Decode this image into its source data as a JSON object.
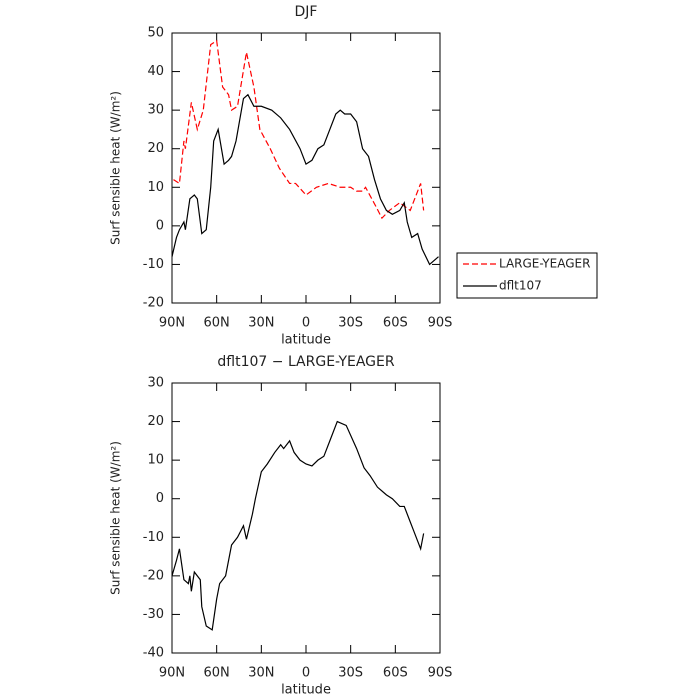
{
  "chart_data": [
    {
      "type": "line",
      "title": "DJF",
      "xlabel": "latitude",
      "ylabel": "Surf sensible heat (W/m²)",
      "xlim": [
        90,
        -90
      ],
      "xticks": [
        {
          "value": 90,
          "label": "90N"
        },
        {
          "value": 60,
          "label": "60N"
        },
        {
          "value": 30,
          "label": "30N"
        },
        0,
        {
          "value": -30,
          "label": "30S"
        },
        {
          "value": -60,
          "label": "60S"
        },
        {
          "value": -90,
          "label": "90S"
        }
      ],
      "ylim": [
        -20,
        50
      ],
      "yticks": [
        -20,
        -10,
        0,
        10,
        20,
        30,
        40,
        50
      ],
      "legend": "right",
      "series": [
        {
          "name": "LARGE-YEAGER",
          "color": "#ff0000",
          "linestyle": "dashed",
          "x": [
            89,
            85,
            82,
            81,
            77,
            73,
            69,
            64,
            60,
            56,
            52,
            50,
            46,
            40,
            35,
            31,
            24,
            18,
            11,
            7,
            0,
            -7,
            -15,
            -23,
            -30,
            -34,
            -38,
            -40,
            -47,
            -51,
            -56,
            -63,
            -70,
            -77,
            -79
          ],
          "values": [
            12,
            11,
            22,
            20,
            32,
            25,
            30,
            47,
            48,
            36,
            34,
            30,
            31,
            45,
            36,
            25,
            20,
            15,
            11,
            11,
            8,
            10,
            11,
            10,
            10,
            9,
            9,
            10,
            5,
            2,
            4,
            6,
            4,
            11,
            4
          ]
        },
        {
          "name": "dflt107",
          "color": "#000000",
          "linestyle": "solid",
          "x": [
            90,
            87,
            85,
            82,
            81,
            78,
            75,
            73,
            70,
            67,
            64,
            62,
            59,
            55,
            52,
            50,
            47,
            42,
            39,
            35,
            30,
            23,
            17,
            11,
            4,
            0,
            -4,
            -8,
            -12,
            -16,
            -20,
            -23,
            -26,
            -30,
            -34,
            -38,
            -42,
            -46,
            -50,
            -54,
            -58,
            -63,
            -66,
            -68,
            -71,
            -75,
            -78,
            -83,
            -86,
            -89
          ],
          "values": [
            -8,
            -3,
            -1,
            1,
            -1,
            7,
            8,
            7,
            -2,
            -1,
            10,
            22,
            25,
            16,
            17,
            18,
            22,
            33,
            34,
            31,
            31,
            30,
            28,
            25,
            20,
            16,
            17,
            20,
            21,
            25,
            29,
            30,
            29,
            29,
            27,
            20,
            18,
            12,
            7,
            4,
            3,
            4,
            6,
            1,
            -3,
            -2,
            -6,
            -10,
            -9,
            -8
          ]
        }
      ]
    },
    {
      "type": "line",
      "title": "dflt107 − LARGE-YEAGER",
      "xlabel": "latitude",
      "ylabel": "Surf sensible heat (W/m²)",
      "xlim": [
        90,
        -90
      ],
      "xticks": [
        {
          "value": 90,
          "label": "90N"
        },
        {
          "value": 60,
          "label": "60N"
        },
        {
          "value": 30,
          "label": "30N"
        },
        0,
        {
          "value": -30,
          "label": "30S"
        },
        {
          "value": -60,
          "label": "60S"
        },
        {
          "value": -90,
          "label": "90S"
        }
      ],
      "ylim": [
        -40,
        30
      ],
      "yticks": [
        -40,
        -30,
        -20,
        -10,
        0,
        10,
        20,
        30
      ],
      "series": [
        {
          "color": "#000000",
          "linestyle": "solid",
          "x": [
            90,
            87,
            85,
            82,
            79,
            78,
            77,
            75,
            71,
            70,
            67,
            63,
            60,
            58,
            54,
            50,
            46,
            42,
            40,
            36,
            34,
            30,
            26,
            21,
            17,
            15,
            11,
            8,
            4,
            0,
            -4,
            -8,
            -12,
            -16,
            -21,
            -27,
            -34,
            -39,
            -43,
            -48,
            -54,
            -58,
            -63,
            -66,
            -70,
            -72,
            -77,
            -79
          ],
          "values": [
            -20,
            -16,
            -13,
            -21,
            -22,
            -20,
            -24,
            -19,
            -21,
            -28,
            -33,
            -34,
            -26,
            -22,
            -20,
            -12,
            -10,
            -7,
            -10.5,
            -4,
            0,
            7,
            9,
            12,
            14,
            13,
            15,
            12,
            10,
            9,
            8.5,
            10,
            11,
            15,
            20,
            19,
            13,
            8,
            6,
            3,
            1,
            0,
            -2,
            -2,
            -6,
            -8,
            -13,
            -9
          ]
        }
      ]
    }
  ]
}
